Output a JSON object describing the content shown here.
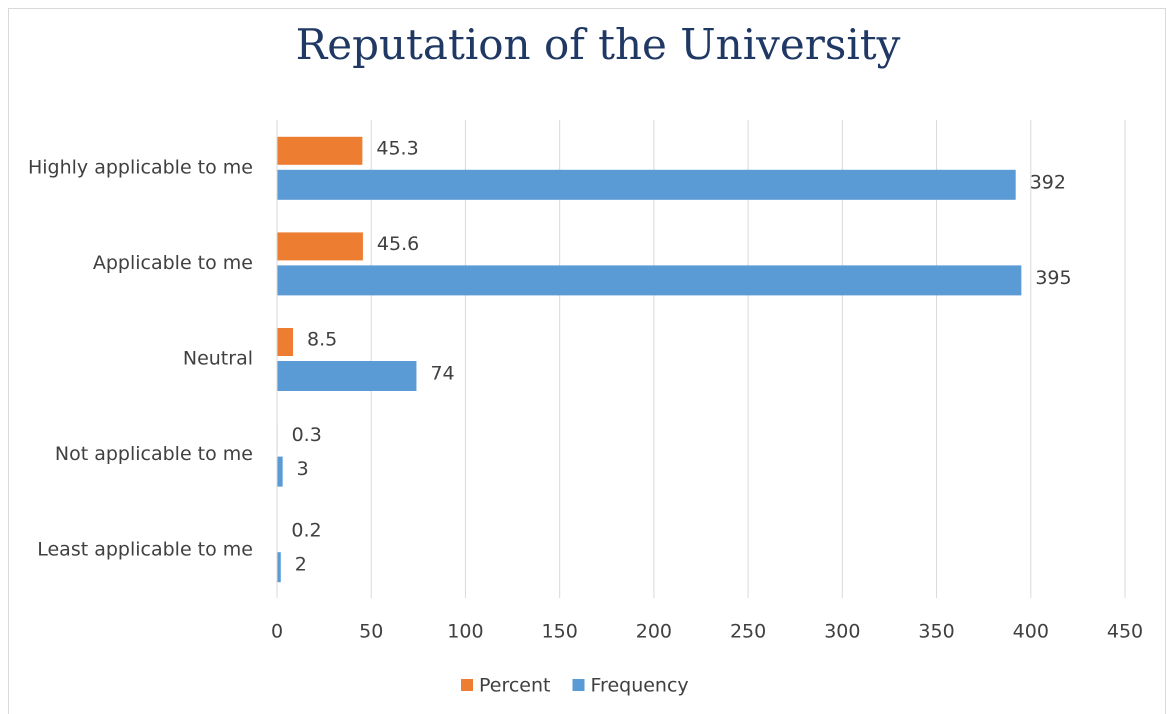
{
  "chart_data": {
    "type": "bar",
    "orientation": "horizontal",
    "title": "Reputation of the University",
    "categories": [
      "Highly applicable to me",
      "Applicable to me",
      "Neutral",
      "Not applicable to me",
      "Least applicable to me"
    ],
    "series": [
      {
        "name": "Percent",
        "color": "#ed7d31",
        "values": [
          45.3,
          45.6,
          8.5,
          0.3,
          0.2
        ]
      },
      {
        "name": "Frequency",
        "color": "#5b9bd5",
        "values": [
          392,
          395,
          74,
          3,
          2
        ]
      }
    ],
    "xlim": [
      0,
      450
    ],
    "xticks": [
      0,
      50,
      100,
      150,
      200,
      250,
      300,
      350,
      400,
      450
    ],
    "grid": true,
    "legend": "bottom"
  }
}
